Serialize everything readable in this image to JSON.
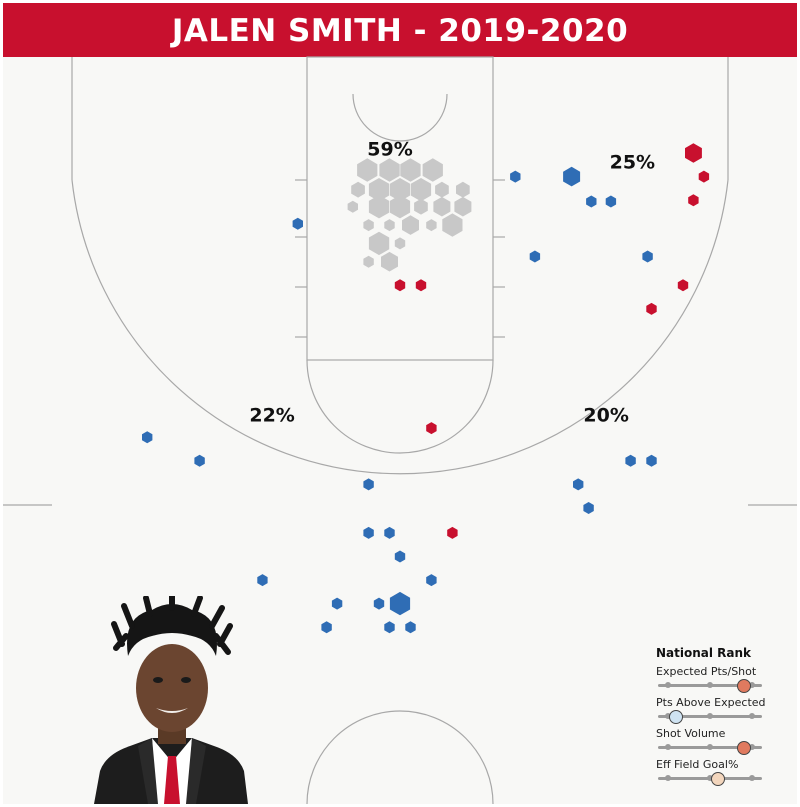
{
  "title": "JALEN SMITH - 2019-2020",
  "colors": {
    "header": "#c8102e",
    "above_avg": "#c8102e",
    "below_avg": "#2f6db5",
    "neutral": "#c8c8c8",
    "court_line": "#a8a8a8",
    "court_bg": "#f8f8f6",
    "rank_high": "#e07a5f",
    "rank_low": "#cfe3f2",
    "rank_mid": "#f3d6bd"
  },
  "chart_data": {
    "type": "scatter",
    "title": "JALEN SMITH - 2019-2020",
    "xlabel": "",
    "ylabel": "",
    "xlim": [
      -25,
      25
    ],
    "ylim": [
      -5,
      42
    ],
    "grid": false,
    "zones": [
      {
        "label": "59%",
        "x": -2.5,
        "y": 0.2
      },
      {
        "label": "25%",
        "x": 16,
        "y": 1.2
      },
      {
        "label": "22%",
        "x": -11.5,
        "y": 20.5
      },
      {
        "label": "20%",
        "x": 14,
        "y": 20.5
      }
    ],
    "shots": [
      {
        "x": -2.5,
        "y": 1.3,
        "size": 5,
        "color": "neutral"
      },
      {
        "x": -0.8,
        "y": 1.3,
        "size": 5,
        "color": "neutral"
      },
      {
        "x": 0.8,
        "y": 1.3,
        "size": 5,
        "color": "neutral"
      },
      {
        "x": 2.5,
        "y": 1.3,
        "size": 5,
        "color": "neutral"
      },
      {
        "x": -3.2,
        "y": 2.8,
        "size": 3,
        "color": "neutral"
      },
      {
        "x": -1.6,
        "y": 2.8,
        "size": 5,
        "color": "neutral"
      },
      {
        "x": 0,
        "y": 2.8,
        "size": 5,
        "color": "neutral"
      },
      {
        "x": 1.6,
        "y": 2.8,
        "size": 5,
        "color": "neutral"
      },
      {
        "x": 3.2,
        "y": 2.8,
        "size": 3,
        "color": "neutral"
      },
      {
        "x": 4.8,
        "y": 2.8,
        "size": 3,
        "color": "neutral"
      },
      {
        "x": -3.6,
        "y": 4.1,
        "size": 2,
        "color": "neutral"
      },
      {
        "x": -1.6,
        "y": 4.1,
        "size": 5,
        "color": "neutral"
      },
      {
        "x": 0,
        "y": 4.1,
        "size": 5,
        "color": "neutral"
      },
      {
        "x": 1.6,
        "y": 4.1,
        "size": 3,
        "color": "neutral"
      },
      {
        "x": 3.2,
        "y": 4.1,
        "size": 4,
        "color": "neutral"
      },
      {
        "x": 4.8,
        "y": 4.1,
        "size": 4,
        "color": "neutral"
      },
      {
        "x": -2.4,
        "y": 5.5,
        "size": 2,
        "color": "neutral"
      },
      {
        "x": -0.8,
        "y": 5.5,
        "size": 2,
        "color": "neutral"
      },
      {
        "x": 0.8,
        "y": 5.5,
        "size": 4,
        "color": "neutral"
      },
      {
        "x": 2.4,
        "y": 5.5,
        "size": 2,
        "color": "neutral"
      },
      {
        "x": 4,
        "y": 5.5,
        "size": 5,
        "color": "neutral"
      },
      {
        "x": -1.6,
        "y": 6.9,
        "size": 5,
        "color": "neutral"
      },
      {
        "x": 0,
        "y": 6.9,
        "size": 2,
        "color": "neutral"
      },
      {
        "x": -2.4,
        "y": 8.3,
        "size": 2,
        "color": "neutral"
      },
      {
        "x": -0.8,
        "y": 8.3,
        "size": 4,
        "color": "neutral"
      },
      {
        "x": 0,
        "y": 10.1,
        "size": 2,
        "color": "red"
      },
      {
        "x": 1.6,
        "y": 10.1,
        "size": 2,
        "color": "red"
      },
      {
        "x": 8.8,
        "y": 1.8,
        "size": 2,
        "color": "blue"
      },
      {
        "x": 10.3,
        "y": 7.9,
        "size": 2,
        "color": "blue"
      },
      {
        "x": 13.1,
        "y": 1.8,
        "size": 4,
        "color": "blue"
      },
      {
        "x": 14.6,
        "y": 3.7,
        "size": 2,
        "color": "blue"
      },
      {
        "x": 16.1,
        "y": 3.7,
        "size": 2,
        "color": "blue"
      },
      {
        "x": 18.9,
        "y": 7.9,
        "size": 2,
        "color": "blue"
      },
      {
        "x": -7.8,
        "y": 5.4,
        "size": 2,
        "color": "blue"
      },
      {
        "x": 22.4,
        "y": 0,
        "size": 4,
        "color": "red"
      },
      {
        "x": 23.2,
        "y": 1.8,
        "size": 2,
        "color": "red"
      },
      {
        "x": 22.4,
        "y": 3.6,
        "size": 2,
        "color": "red"
      },
      {
        "x": 21.6,
        "y": 10.1,
        "size": 2,
        "color": "red"
      },
      {
        "x": 19.2,
        "y": 11.9,
        "size": 2,
        "color": "red"
      },
      {
        "x": 2.4,
        "y": 21,
        "size": 2,
        "color": "red"
      },
      {
        "x": -19.3,
        "y": 21.7,
        "size": 2,
        "color": "blue"
      },
      {
        "x": -15.3,
        "y": 23.5,
        "size": 2,
        "color": "blue"
      },
      {
        "x": 17.6,
        "y": 23.5,
        "size": 2,
        "color": "blue"
      },
      {
        "x": 19.2,
        "y": 23.5,
        "size": 2,
        "color": "blue"
      },
      {
        "x": -2.4,
        "y": 25.3,
        "size": 2,
        "color": "blue"
      },
      {
        "x": 13.6,
        "y": 25.3,
        "size": 2,
        "color": "blue"
      },
      {
        "x": 14.4,
        "y": 27.1,
        "size": 2,
        "color": "blue"
      },
      {
        "x": -2.4,
        "y": 29,
        "size": 2,
        "color": "blue"
      },
      {
        "x": -0.8,
        "y": 29,
        "size": 2,
        "color": "blue"
      },
      {
        "x": 4,
        "y": 29,
        "size": 2,
        "color": "red"
      },
      {
        "x": 0,
        "y": 30.8,
        "size": 2,
        "color": "blue"
      },
      {
        "x": 2.4,
        "y": 32.6,
        "size": 2,
        "color": "blue"
      },
      {
        "x": -10.5,
        "y": 32.6,
        "size": 2,
        "color": "blue"
      },
      {
        "x": -4.8,
        "y": 34.4,
        "size": 2,
        "color": "blue"
      },
      {
        "x": -1.6,
        "y": 34.4,
        "size": 2,
        "color": "blue"
      },
      {
        "x": 0,
        "y": 34.4,
        "size": 5,
        "color": "blue"
      },
      {
        "x": -5.6,
        "y": 36.2,
        "size": 2,
        "color": "blue"
      },
      {
        "x": -0.8,
        "y": 36.2,
        "size": 2,
        "color": "blue"
      },
      {
        "x": 0.8,
        "y": 36.2,
        "size": 2,
        "color": "blue"
      }
    ]
  },
  "legend": {
    "title": "National Rank",
    "metrics": [
      {
        "label": "Expected Pts/Shot",
        "rank_pct": 83,
        "color": "rank_high"
      },
      {
        "label": "Pts Above Expected",
        "rank_pct": 17,
        "color": "rank_low"
      },
      {
        "label": "Shot Volume",
        "rank_pct": 83,
        "color": "rank_high"
      },
      {
        "label": "Eff Field Goal%",
        "rank_pct": 58,
        "color": "rank_mid"
      }
    ]
  },
  "photo": {
    "icon": "player-headshot-icon"
  }
}
